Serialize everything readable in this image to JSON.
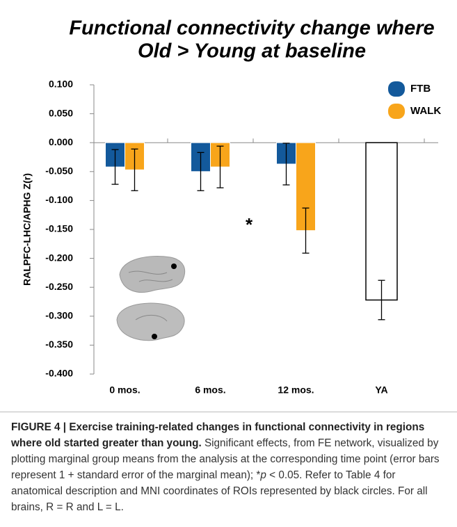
{
  "chart_data": {
    "type": "bar",
    "title": [
      "Functional connectivity change where",
      "Old > Young at baseline"
    ],
    "ylabel": "RALPFC-LHC/APHG Z(r)",
    "categories": [
      "0 mos.",
      "6 mos.",
      "12 mos.",
      "YA"
    ],
    "series": [
      {
        "name": "FTB",
        "color": "#13599b",
        "values": [
          -0.042,
          -0.05,
          -0.037,
          null
        ],
        "errors": [
          0.03,
          0.033,
          0.036,
          null
        ]
      },
      {
        "name": "WALK",
        "color": "#f8a51b",
        "values": [
          -0.047,
          -0.042,
          -0.152,
          null
        ],
        "errors": [
          0.036,
          0.036,
          0.039,
          null
        ]
      },
      {
        "color": "#ffffff",
        "values": [
          null,
          null,
          null,
          -0.272
        ],
        "errors": [
          null,
          null,
          null,
          0.034
        ]
      }
    ],
    "ylim": [
      -0.4,
      0.1
    ],
    "yticks": [
      {
        "value": 0.1,
        "label": "0.100"
      },
      {
        "value": 0.05,
        "label": "0.050"
      },
      {
        "value": 0,
        "label": "0.000"
      },
      {
        "value": -0.05,
        "label": "-0.050"
      },
      {
        "value": -0.1,
        "label": "-0.100"
      },
      {
        "value": -0.15,
        "label": "-0.150"
      },
      {
        "value": -0.2,
        "label": "-0.200"
      },
      {
        "value": -0.25,
        "label": "-0.250"
      },
      {
        "value": -0.3,
        "label": "-0.300"
      },
      {
        "value": -0.35,
        "label": "-0.350"
      },
      {
        "value": -0.4,
        "label": "-0.400"
      }
    ],
    "annotation": "*",
    "legend": "upper right",
    "grid": false
  },
  "caption": {
    "bold": "FIGURE 4 | Exercise training-related changes in functional connectivity in regions where old started greater than young.",
    "text_1": " Significant effects, from FE network, visualized by plotting marginal group means from the analysis at the corresponding time point (error bars represent 1 + standard error of the marginal mean); *",
    "p": "p",
    "text_2": " < 0.05. Refer to Table 4 for anatomical description and MNI coordinates of ROIs represented by black circles. For all brains, R = R and L = L."
  }
}
